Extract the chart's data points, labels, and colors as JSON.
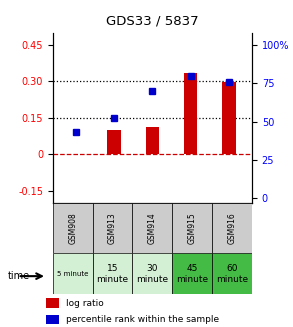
{
  "title": "GDS33 / 5837",
  "samples": [
    "GSM908",
    "GSM913",
    "GSM914",
    "GSM915",
    "GSM916"
  ],
  "time_labels": [
    "5 minute",
    "15\nminute",
    "30\nminute",
    "45\nminute",
    "60\nminute"
  ],
  "time_colors": [
    "#d4f0d4",
    "#d4f0d4",
    "#d4f0d4",
    "#44bb44",
    "#44bb44"
  ],
  "log_ratio": [
    0.0,
    0.1,
    0.11,
    0.335,
    0.295
  ],
  "percentile_rank_pct": [
    43,
    52,
    70,
    80,
    76
  ],
  "bar_color": "#cc0000",
  "dot_color": "#0000cc",
  "ylim_left": [
    -0.2,
    0.5
  ],
  "ylim_right": [
    -3.33,
    108.33
  ],
  "yticks_left": [
    -0.15,
    0.0,
    0.15,
    0.3,
    0.45
  ],
  "yticks_left_labels": [
    "-0.15",
    "0",
    "0.15",
    "0.30",
    "0.45"
  ],
  "yticks_right": [
    0,
    25,
    50,
    75,
    100
  ],
  "yticks_right_labels": [
    "0",
    "25",
    "50",
    "75",
    "100%"
  ],
  "zero_line_color": "#cc0000",
  "bg_color": "#ffffff",
  "sample_bg": "#cccccc",
  "legend_log_ratio": "log ratio",
  "legend_percentile": "percentile rank within the sample"
}
